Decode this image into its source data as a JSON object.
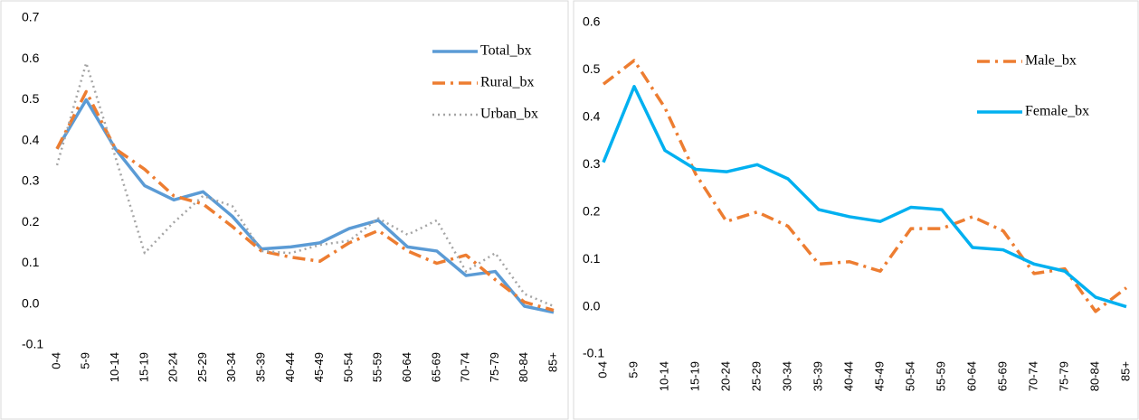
{
  "chart_data": [
    {
      "type": "line",
      "categories": [
        "0-4",
        "5-9",
        "10-14",
        "15-19",
        "20-24",
        "25-29",
        "30-34",
        "35-39",
        "40-44",
        "45-49",
        "50-54",
        "55-59",
        "60-64",
        "65-69",
        "70-74",
        "75-79",
        "80-84",
        "85+"
      ],
      "series": [
        {
          "name": "Total_bx",
          "color": "#5b9bd5",
          "dash": "solid",
          "values": [
            0.38,
            0.5,
            0.38,
            0.29,
            0.255,
            0.275,
            0.215,
            0.135,
            0.14,
            0.15,
            0.185,
            0.205,
            0.14,
            0.13,
            0.07,
            0.08,
            -0.005,
            -0.02
          ]
        },
        {
          "name": "Rural_bx",
          "color": "#ed7d31",
          "dash": "dashdot",
          "values": [
            0.38,
            0.52,
            0.38,
            0.33,
            0.265,
            0.245,
            0.19,
            0.13,
            0.115,
            0.105,
            0.15,
            0.18,
            0.13,
            0.1,
            0.12,
            0.06,
            0.005,
            -0.015
          ]
        },
        {
          "name": "Urban_bx",
          "color": "#a5a5a5",
          "dash": "dot",
          "values": [
            0.34,
            0.59,
            0.36,
            0.125,
            0.2,
            0.265,
            0.24,
            0.13,
            0.125,
            0.145,
            0.155,
            0.21,
            0.17,
            0.205,
            0.08,
            0.125,
            0.025,
            -0.005
          ]
        }
      ],
      "ylim": [
        -0.1,
        0.7
      ],
      "yticks": [
        -0.1,
        {
          "value": 0,
          "label": "0.0"
        },
        0.1,
        0.2,
        0.3,
        0.4,
        0.5,
        0.6,
        0.7
      ],
      "grid": false,
      "legend": "upper right"
    },
    {
      "type": "line",
      "categories": [
        "0-4",
        "5-9",
        "10-14",
        "15-19",
        "20-24",
        "25-29",
        "30-34",
        "35-39",
        "40-44",
        "45-49",
        "50-54",
        "55-59",
        "60-64",
        "65-69",
        "70-74",
        "75-79",
        "80-84",
        "85+"
      ],
      "series": [
        {
          "name": "Male_bx",
          "color": "#ed7d31",
          "dash": "dashdot",
          "values": [
            0.47,
            0.52,
            0.42,
            0.28,
            0.18,
            0.2,
            0.17,
            0.09,
            0.095,
            0.075,
            0.165,
            0.165,
            0.19,
            0.16,
            0.07,
            0.08,
            -0.01,
            0.04
          ]
        },
        {
          "name": "Female_bx",
          "color": "#00b0f0",
          "dash": "solid",
          "values": [
            0.305,
            0.465,
            0.33,
            0.29,
            0.285,
            0.3,
            0.27,
            0.205,
            0.19,
            0.18,
            0.21,
            0.205,
            0.125,
            0.12,
            0.09,
            0.075,
            0.02,
            0.0
          ]
        }
      ],
      "ylim": [
        -0.1,
        0.6
      ],
      "yticks": [
        -0.1,
        {
          "value": 0,
          "label": "0.0"
        },
        0.1,
        0.2,
        0.3,
        0.4,
        0.5,
        0.6
      ],
      "grid": false,
      "legend": "upper right"
    }
  ]
}
